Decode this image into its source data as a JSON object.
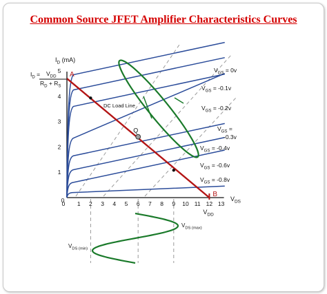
{
  "title": "Common Source JFET Amplifier Characteristics Curves",
  "chart_data": {
    "type": "line",
    "ylabel_main": "I",
    "ylabel_sub": "D",
    "ylabel_unit": " (mA)",
    "xlabel_main": "V",
    "xlabel_sub": "DS",
    "x_ticks": [
      "0",
      "1",
      "2",
      "3",
      "4",
      "5",
      "6",
      "7",
      "8",
      "9",
      "10",
      "11",
      "12",
      "13"
    ],
    "y_ticks": [
      "1",
      "2",
      "3",
      "4",
      "5"
    ],
    "xlim": [
      0,
      13
    ],
    "ylim": [
      0,
      5
    ],
    "series": [
      {
        "name": "VGS = 0v",
        "label_main": "V",
        "label_sub": "GS",
        "label_val": " = 0v",
        "sat": 4.85,
        "slope": 0.01
      },
      {
        "name": "VGS = -0.1v",
        "label_main": "V",
        "label_sub": "GS",
        "label_val": " = -0.1v",
        "sat": 4.25,
        "slope": 0.01
      },
      {
        "name": "VGS = -0.2v",
        "label_main": "V",
        "label_sub": "GS",
        "label_val": " = -0.2v",
        "sat": 3.6,
        "slope": 0.01
      },
      {
        "name": "VGS = -0.3v",
        "label_main": "V",
        "label_sub": "GS",
        "label_val": " = ",
        "label_val2": "-0.3v",
        "sat": 2.35,
        "slope": 0.02
      },
      {
        "name": "VGS = -0.4v",
        "label_main": "V",
        "label_sub": "GS",
        "label_val": " = -0.4v",
        "sat": 1.65,
        "slope": 0.01
      },
      {
        "name": "VGS = -0.6v",
        "label_main": "V",
        "label_sub": "GS",
        "label_val": " = -0.6v",
        "sat": 1.1,
        "slope": 0.01
      },
      {
        "name": "VGS = -0.8v",
        "label_main": "V",
        "label_sub": "GS",
        "label_val": " = -0.8v",
        "sat": 0.6,
        "slope": 0.01
      },
      {
        "name": "baseline",
        "sat": 0.2,
        "slope": 0.002
      }
    ],
    "load_line": {
      "label": "DC Load Line",
      "x": [
        0,
        12
      ],
      "y": [
        4.7,
        0
      ]
    },
    "points": {
      "A": {
        "label": "A",
        "x": 0,
        "y": 4.7
      },
      "B": {
        "label": "B",
        "x": 12,
        "y": 0
      },
      "Q": {
        "label": "Q",
        "x": 6,
        "y": 2.4
      }
    },
    "id_formula": {
      "lhs_main": "I",
      "lhs_sub": "D",
      "eq": " =",
      "num_main": "V",
      "num_sub": "DD",
      "den": "R",
      "den_sub1": "D",
      "plus": " + R",
      "den_sub2": "S"
    },
    "vdd_label": {
      "main": "V",
      "sub": "DD"
    },
    "vds_max": {
      "main": "V",
      "sub": "DS (max)"
    },
    "vds_min": {
      "main": "V",
      "sub": "DS (min)"
    },
    "colors": {
      "curve": "#2b4c9a",
      "load_line": "#b31515",
      "signal": "#1a7a2a",
      "dashed": "#9a9a9a",
      "title": "#d40000",
      "q_point": "#a0a0a0"
    }
  }
}
